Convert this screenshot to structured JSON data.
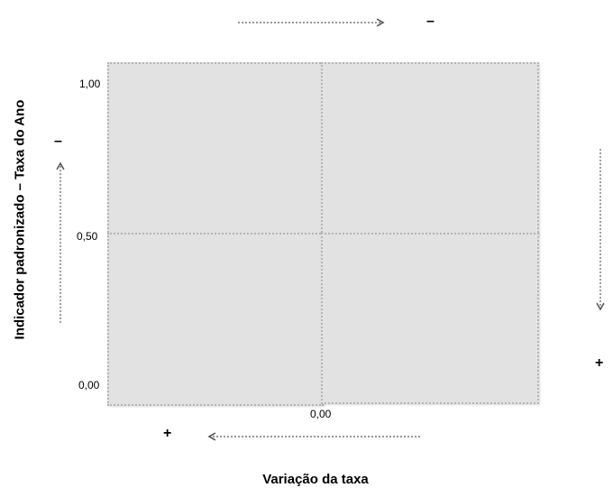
{
  "diagram": {
    "y_axis": {
      "title": "Indicador padronizado – Taxa do Ano",
      "ticks": [
        "1,00",
        "0,50",
        "0,00"
      ]
    },
    "x_axis": {
      "title": "Variação da taxa",
      "tick": "0,00"
    },
    "signs": {
      "top_arrow": "–",
      "left_arrow": "–",
      "right_arrow": "+",
      "bottom_arrow": "+"
    },
    "quadrants": [
      "top-left",
      "top-right",
      "bottom-left",
      "bottom-right"
    ],
    "colors": {
      "quadrant_fill": "#e2e2e2",
      "quadrant_border": "#b4b4b4",
      "arrow": "#555555"
    }
  }
}
